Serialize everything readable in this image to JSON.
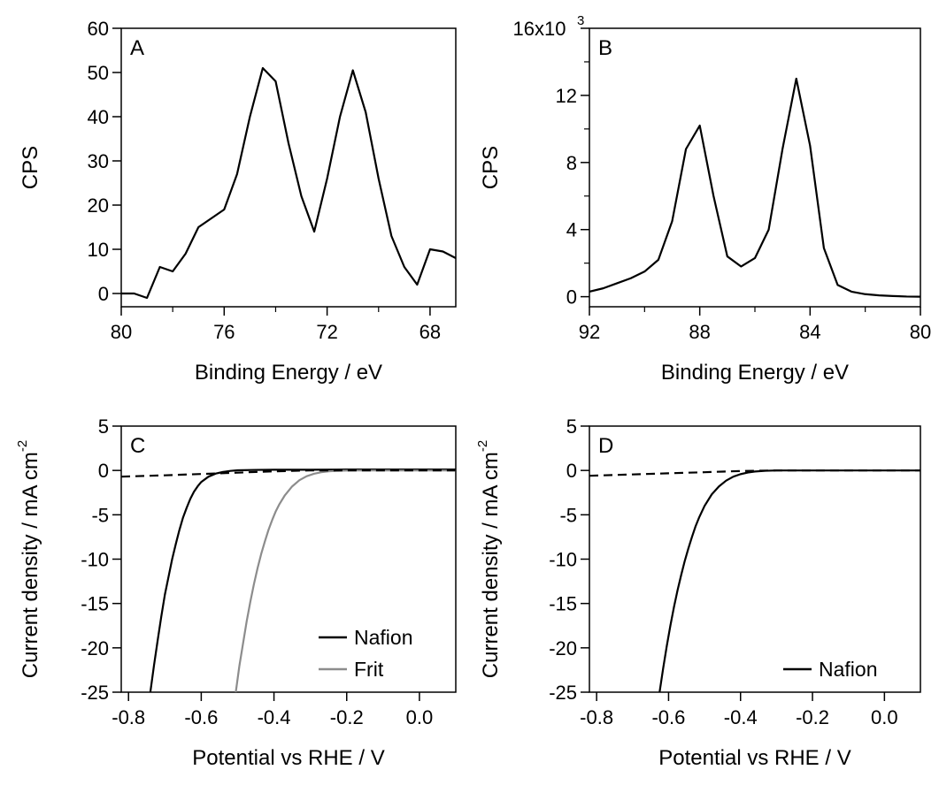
{
  "chart_data": [
    {
      "id": "A",
      "type": "line",
      "panel_label": "A",
      "xlabel": "Binding Energy / eV",
      "ylabel": "CPS",
      "xlim": [
        80,
        67
      ],
      "ylim": [
        -3,
        60
      ],
      "x_reversed": true,
      "xticks": [
        {
          "v": 80,
          "label": "80"
        },
        {
          "v": 76,
          "label": "76"
        },
        {
          "v": 72,
          "label": "72"
        },
        {
          "v": 68,
          "label": "68"
        }
      ],
      "yticks": [
        {
          "v": 0,
          "label": "0"
        },
        {
          "v": 10,
          "label": "10"
        },
        {
          "v": 20,
          "label": "20"
        },
        {
          "v": 30,
          "label": "30"
        },
        {
          "v": 40,
          "label": "40"
        },
        {
          "v": 50,
          "label": "50"
        },
        {
          "v": 60,
          "label": "60"
        }
      ],
      "series": [
        {
          "color": "#000000",
          "x": [
            80,
            79.5,
            79,
            78.5,
            78,
            77.5,
            77,
            76.5,
            76,
            75.5,
            75,
            74.5,
            74,
            73.5,
            73,
            72.5,
            72,
            71.5,
            71,
            70.5,
            70,
            69.5,
            69,
            68.5,
            68,
            67.5,
            67
          ],
          "y": [
            0,
            0,
            -1,
            6,
            5,
            9,
            15,
            17,
            19,
            27,
            40,
            51,
            48,
            34,
            22,
            14,
            26,
            40,
            50.5,
            41,
            26,
            13,
            6,
            2,
            10,
            9.5,
            8
          ]
        }
      ]
    },
    {
      "id": "B",
      "type": "line",
      "panel_label": "B",
      "xlabel": "Binding Energy / eV",
      "ylabel": "CPS",
      "xlim": [
        92,
        80
      ],
      "ylim": [
        -600,
        16000
      ],
      "x_reversed": true,
      "y_multiplier_label": "x10",
      "y_multiplier_exp": "3",
      "xticks": [
        {
          "v": 92,
          "label": "92"
        },
        {
          "v": 88,
          "label": "88"
        },
        {
          "v": 84,
          "label": "84"
        },
        {
          "v": 80,
          "label": "80"
        }
      ],
      "yticks": [
        {
          "v": 0,
          "label": "0"
        },
        {
          "v": 4000,
          "label": "4"
        },
        {
          "v": 8000,
          "label": "8"
        },
        {
          "v": 12000,
          "label": "12"
        },
        {
          "v": 16000,
          "label": "16"
        }
      ],
      "series": [
        {
          "color": "#000000",
          "x": [
            92,
            91.5,
            91,
            90.5,
            90,
            89.5,
            89,
            88.5,
            88,
            87.5,
            87,
            86.5,
            86,
            85.5,
            85,
            84.5,
            84,
            83.5,
            83,
            82.5,
            82,
            81.5,
            81,
            80.5,
            80
          ],
          "y": [
            300,
            500,
            800,
            1100,
            1500,
            2200,
            4500,
            8800,
            10200,
            6000,
            2400,
            1800,
            2300,
            4000,
            8800,
            13000,
            9000,
            2900,
            700,
            300,
            150,
            80,
            40,
            10,
            0
          ]
        }
      ]
    },
    {
      "id": "C",
      "type": "line",
      "panel_label": "C",
      "xlabel": "Potential vs RHE / V",
      "ylabel": "Current density / mA cm",
      "ylabel_exp": "-2",
      "xlim": [
        -0.82,
        0.1
      ],
      "ylim": [
        -25,
        5
      ],
      "xticks": [
        {
          "v": -0.8,
          "label": "-0.8"
        },
        {
          "v": -0.6,
          "label": "-0.6"
        },
        {
          "v": -0.4,
          "label": "-0.4"
        },
        {
          "v": -0.2,
          "label": "-0.2"
        },
        {
          "v": 0.0,
          "label": "0.0"
        }
      ],
      "yticks": [
        {
          "v": 5,
          "label": "5"
        },
        {
          "v": 0,
          "label": "0"
        },
        {
          "v": -5,
          "label": "-5"
        },
        {
          "v": -10,
          "label": "-10"
        },
        {
          "v": -15,
          "label": "-15"
        },
        {
          "v": -20,
          "label": "-20"
        },
        {
          "v": -25,
          "label": "-25"
        }
      ],
      "legend_position": "bottom-right",
      "series": [
        {
          "name": "Nafion",
          "color": "#000000",
          "dash": false,
          "x": [
            -0.74,
            -0.73,
            -0.72,
            -0.71,
            -0.7,
            -0.69,
            -0.68,
            -0.67,
            -0.66,
            -0.65,
            -0.64,
            -0.63,
            -0.62,
            -0.61,
            -0.6,
            -0.58,
            -0.56,
            -0.54,
            -0.52,
            -0.5,
            -0.45,
            -0.4,
            -0.3,
            -0.2,
            -0.1,
            0.0,
            0.1
          ],
          "y": [
            -25,
            -22,
            -19.2,
            -16.5,
            -14,
            -12,
            -10,
            -8.3,
            -6.7,
            -5.3,
            -4.2,
            -3.2,
            -2.4,
            -1.8,
            -1.3,
            -0.7,
            -0.35,
            -0.17,
            -0.05,
            0.02,
            0.06,
            0.08,
            0.08,
            0.1,
            0.1,
            0.1,
            0.1
          ]
        },
        {
          "name": "Frit",
          "color": "#8c8c8c",
          "dash": false,
          "x": [
            -0.505,
            -0.495,
            -0.485,
            -0.475,
            -0.465,
            -0.455,
            -0.445,
            -0.435,
            -0.425,
            -0.415,
            -0.405,
            -0.395,
            -0.385,
            -0.37,
            -0.35,
            -0.33,
            -0.31,
            -0.29,
            -0.27,
            -0.25,
            -0.22,
            -0.19,
            -0.15,
            -0.1,
            0.0,
            0.1
          ],
          "y": [
            -25,
            -22,
            -19.5,
            -17,
            -14.8,
            -12.8,
            -11,
            -9.4,
            -8,
            -6.7,
            -5.6,
            -4.6,
            -3.8,
            -2.8,
            -1.8,
            -1.1,
            -0.65,
            -0.38,
            -0.2,
            -0.1,
            -0.03,
            0,
            0,
            0,
            0,
            0
          ]
        },
        {
          "color": "#000000",
          "dash": true,
          "x": [
            -0.82,
            -0.7,
            -0.6,
            -0.5,
            -0.45,
            -0.4,
            -0.35,
            -0.3,
            -0.2,
            -0.1,
            0.0,
            0.1
          ],
          "y": [
            -0.7,
            -0.55,
            -0.4,
            -0.25,
            -0.17,
            -0.1,
            -0.05,
            0,
            0,
            0,
            0,
            0
          ]
        }
      ]
    },
    {
      "id": "D",
      "type": "line",
      "panel_label": "D",
      "xlabel": "Potential vs RHE / V",
      "ylabel": "Current density / mA cm",
      "ylabel_exp": "-2",
      "xlim": [
        -0.82,
        0.1
      ],
      "ylim": [
        -25,
        5
      ],
      "xticks": [
        {
          "v": -0.8,
          "label": "-0.8"
        },
        {
          "v": -0.6,
          "label": "-0.6"
        },
        {
          "v": -0.4,
          "label": "-0.4"
        },
        {
          "v": -0.2,
          "label": "-0.2"
        },
        {
          "v": 0.0,
          "label": "0.0"
        }
      ],
      "yticks": [
        {
          "v": 5,
          "label": "5"
        },
        {
          "v": 0,
          "label": "0"
        },
        {
          "v": -5,
          "label": "-5"
        },
        {
          "v": -10,
          "label": "-10"
        },
        {
          "v": -15,
          "label": "-15"
        },
        {
          "v": -20,
          "label": "-20"
        },
        {
          "v": -25,
          "label": "-25"
        }
      ],
      "legend_position": "bottom-right",
      "series": [
        {
          "name": "Nafion",
          "color": "#000000",
          "dash": false,
          "x": [
            -0.625,
            -0.615,
            -0.605,
            -0.595,
            -0.585,
            -0.575,
            -0.565,
            -0.555,
            -0.545,
            -0.535,
            -0.525,
            -0.515,
            -0.5,
            -0.48,
            -0.46,
            -0.44,
            -0.42,
            -0.4,
            -0.38,
            -0.36,
            -0.33,
            -0.3,
            -0.25,
            -0.2,
            -0.1,
            0.0,
            0.1
          ],
          "y": [
            -25,
            -22.3,
            -19.8,
            -17.5,
            -15.4,
            -13.5,
            -11.8,
            -10.2,
            -8.8,
            -7.5,
            -6.3,
            -5.3,
            -4,
            -2.7,
            -1.8,
            -1.15,
            -0.7,
            -0.42,
            -0.24,
            -0.12,
            -0.04,
            0,
            0,
            0,
            0,
            0,
            0
          ]
        },
        {
          "color": "#000000",
          "dash": true,
          "x": [
            -0.82,
            -0.7,
            -0.6,
            -0.5,
            -0.45,
            -0.4,
            -0.35,
            -0.3,
            -0.2,
            -0.1,
            0.0,
            0.1
          ],
          "y": [
            -0.6,
            -0.45,
            -0.32,
            -0.2,
            -0.13,
            -0.07,
            -0.03,
            0,
            0,
            0,
            0,
            0
          ]
        }
      ]
    }
  ]
}
